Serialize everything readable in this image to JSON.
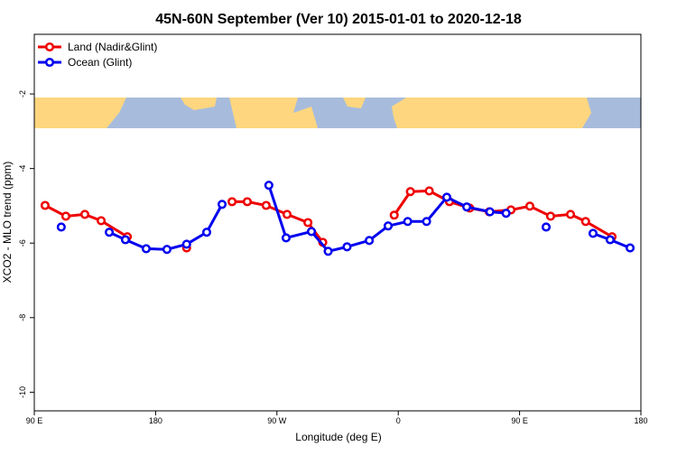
{
  "chart_data": {
    "type": "line",
    "title": "45N-60N September (Ver 10)   2015-01-01 to 2020-12-18",
    "xlabel": "Longitude (deg E)",
    "ylabel": "XCO2 - MLO trend (ppm)",
    "xlim": [
      90,
      540
    ],
    "xticks": [
      {
        "value": 90,
        "label": "90 E"
      },
      180,
      {
        "value": 270,
        "label": "90 W"
      },
      {
        "value": 360,
        "label": "0"
      },
      {
        "value": 450,
        "label": "90 E"
      },
      {
        "value": 540,
        "label": "180"
      }
    ],
    "ylim": [
      -10.5,
      -0.4
    ],
    "yticks": [
      -2,
      -4,
      -6,
      -8,
      -10
    ],
    "legend": "top-left",
    "series": [
      {
        "name": "Land (Nadir&Glint)",
        "color": "#ee0000",
        "x": [
          98,
          113.4,
          127.5,
          139.6,
          159,
          null,
          203,
          null,
          236.7,
          248,
          262,
          277.5,
          293,
          304,
          null,
          357,
          369,
          383,
          398,
          413,
          427.5,
          443.6,
          457.6,
          473,
          487.8,
          499,
          518.6
        ],
        "values": [
          -4.99,
          -5.28,
          -5.23,
          -5.4,
          -5.83,
          null,
          -6.13,
          null,
          -4.89,
          -4.89,
          -4.99,
          -5.23,
          -5.45,
          -5.98,
          null,
          -5.25,
          -4.62,
          -4.6,
          -4.89,
          -5.06,
          -5.16,
          -5.11,
          -5.01,
          -5.28,
          -5.23,
          -5.42,
          -5.83
        ]
      },
      {
        "name": "Ocean (Glint)",
        "color": "#0000ee",
        "x": [
          110,
          null,
          145.6,
          157.6,
          173,
          188.4,
          203,
          217.9,
          229.3,
          null,
          264,
          276.8,
          295.6,
          308,
          322,
          338.5,
          352.5,
          367,
          381,
          396,
          410.8,
          428,
          440,
          null,
          469.7,
          null,
          504.5,
          517.2,
          532
        ],
        "values": [
          -5.57,
          null,
          -5.71,
          -5.91,
          -6.15,
          -6.17,
          -6.03,
          -5.71,
          -4.96,
          null,
          -4.45,
          -5.86,
          -5.69,
          -6.22,
          -6.1,
          -5.93,
          -5.54,
          -5.42,
          -5.42,
          -4.77,
          -5.03,
          -5.16,
          -5.2,
          null,
          -5.57,
          null,
          -5.74,
          -5.91,
          -6.13
        ]
      }
    ]
  }
}
